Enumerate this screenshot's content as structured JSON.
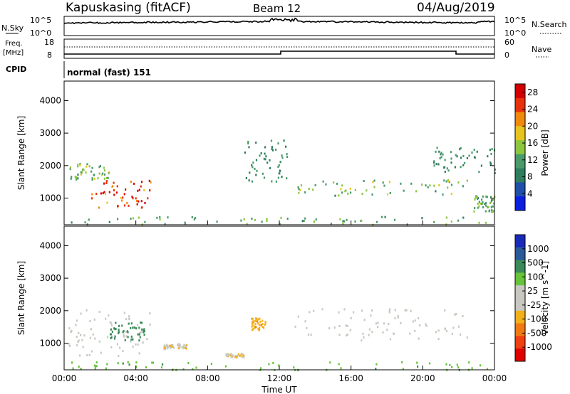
{
  "header": {
    "station": "Kapuskasing (fitACF)",
    "beam": "Beam 12",
    "date": "04/Aug/2019"
  },
  "strip_labels": {
    "nsky": "N.Sky",
    "nsearch": "N.Search",
    "freq_line1": "Freq.",
    "freq_line2": "[MHz]",
    "nave": "Nave",
    "cpid": "CPID",
    "cpid_value": "normal (fast) 151",
    "noise_tick_top": "10^5",
    "noise_tick_bottom": "10^0",
    "freq_tick_top": "18",
    "freq_tick_bottom": "8",
    "nave_tick_top": "60",
    "nave_tick_bottom": "0"
  },
  "colors": {
    "power_scale": [
      "#0a1fe0",
      "#1f4fa8",
      "#2e7d5e",
      "#4a9a6a",
      "#8cc63f",
      "#e8c51e",
      "#f08a0c",
      "#e8300a",
      "#d40000"
    ],
    "velocity_scale": [
      "#e00000",
      "#f04010",
      "#f07a10",
      "#f2b01a",
      "#c8c8c0",
      "#c8c8c0",
      "#66c33a",
      "#3a8a5a",
      "#2a5a9a",
      "#1a2ab8"
    ],
    "ground_scatter": "#c8c8c0"
  },
  "chart_data": [
    {
      "type": "heatmap",
      "name": "power",
      "xlabel": "",
      "ylabel": "Slant Range [km]",
      "x_ticks": [
        "00:00",
        "04:00",
        "08:00",
        "12:00",
        "16:00",
        "20:00",
        "00:00"
      ],
      "xlim_hours": [
        0,
        24
      ],
      "y_ticks": [
        1000,
        2000,
        3000,
        4000
      ],
      "ylim_km": [
        180,
        4600
      ],
      "colorbar": {
        "label": "Power [dB]",
        "ticks": [
          4,
          8,
          12,
          16,
          20,
          24,
          28
        ],
        "range": [
          0,
          30
        ]
      },
      "features": [
        {
          "t": [
            0.3,
            2.5
          ],
          "r": [
            1600,
            2100
          ],
          "value": 14
        },
        {
          "t": [
            1.5,
            4.8
          ],
          "r": [
            700,
            1600
          ],
          "value": 26
        },
        {
          "t": [
            0.2,
            23.8
          ],
          "r": [
            200,
            450
          ],
          "value": 12
        },
        {
          "t": [
            10.0,
            12.4
          ],
          "r": [
            1500,
            2800
          ],
          "value": 10
        },
        {
          "t": [
            12.8,
            22.5
          ],
          "r": [
            1100,
            1600
          ],
          "value": 14
        },
        {
          "t": [
            20.5,
            24.0
          ],
          "r": [
            1800,
            2600
          ],
          "value": 10
        },
        {
          "t": [
            22.8,
            24.0
          ],
          "r": [
            600,
            1100
          ],
          "value": 12
        }
      ]
    },
    {
      "type": "heatmap",
      "name": "velocity",
      "xlabel": "Time UT",
      "ylabel": "Slant Range [km]",
      "x_ticks": [
        "00:00",
        "04:00",
        "08:00",
        "12:00",
        "16:00",
        "20:00",
        "00:00"
      ],
      "xlim_hours": [
        0,
        24
      ],
      "y_ticks": [
        1000,
        2000,
        3000,
        4000
      ],
      "ylim_km": [
        180,
        4600
      ],
      "colorbar": {
        "label": "Velocity [m s^-1]",
        "ticks": [
          -1000,
          -500,
          -100,
          -25,
          25,
          100,
          500,
          1000
        ]
      },
      "features": [
        {
          "t": [
            0.2,
            4.8
          ],
          "r": [
            600,
            2100
          ],
          "value": 0
        },
        {
          "t": [
            2.5,
            4.5
          ],
          "r": [
            1100,
            1700
          ],
          "value": 150
        },
        {
          "t": [
            5.5,
            6.8
          ],
          "r": [
            850,
            1000
          ],
          "value": -90
        },
        {
          "t": [
            9.0,
            10.0
          ],
          "r": [
            600,
            700
          ],
          "value": -90
        },
        {
          "t": [
            10.4,
            11.2
          ],
          "r": [
            1400,
            1800
          ],
          "value": -400
        },
        {
          "t": [
            12.8,
            22.5
          ],
          "r": [
            1100,
            2100
          ],
          "value": 0
        },
        {
          "t": [
            0.2,
            23.8
          ],
          "r": [
            200,
            450
          ],
          "value": 80
        }
      ]
    }
  ]
}
